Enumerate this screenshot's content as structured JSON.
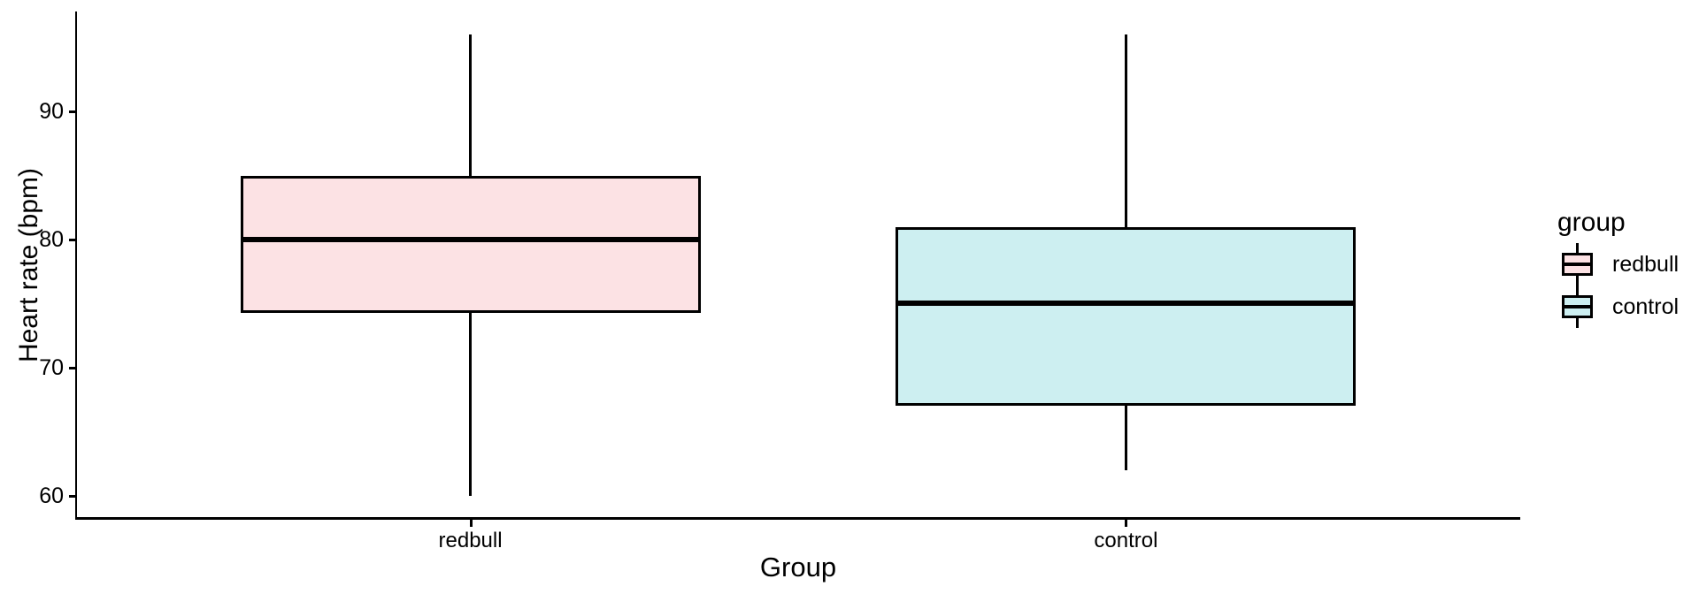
{
  "figure": {
    "y_axis_title": "Heart rate (bpm)",
    "x_axis_title": "Group",
    "legend_title": "group"
  },
  "chart_data": {
    "type": "boxplot",
    "title": "",
    "xlabel": "Group",
    "ylabel": "Heart rate (bpm)",
    "categories": [
      "redbull",
      "control"
    ],
    "series": [
      {
        "name": "redbull",
        "min": 60,
        "q1": 74.25,
        "median": 80,
        "q3": 85,
        "max": 96,
        "fill": "#FCE2E4"
      },
      {
        "name": "control",
        "min": 62,
        "q1": 67,
        "median": 75,
        "q3": 81,
        "max": 96,
        "fill": "#CDEFF1"
      }
    ],
    "y_ticks": [
      60,
      70,
      80,
      90
    ],
    "ylim": [
      58.2,
      97.8
    ],
    "grid": false,
    "legend": {
      "title": "group",
      "position": "right",
      "entries": [
        {
          "label": "redbull",
          "fill": "#FCE2E4"
        },
        {
          "label": "control",
          "fill": "#CDEFF1"
        }
      ]
    },
    "colors": {
      "stroke": "#000000",
      "background": "#FFFFFF"
    }
  }
}
